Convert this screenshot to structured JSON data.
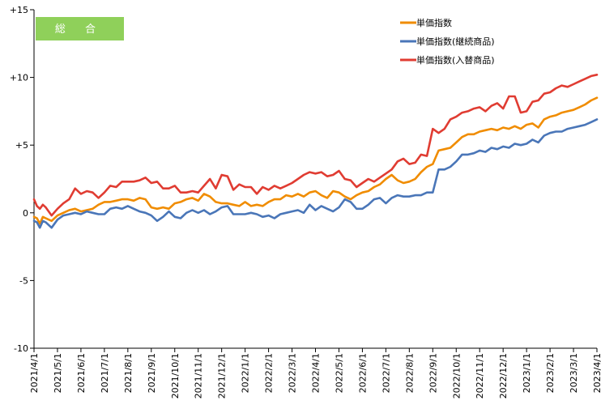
{
  "chart_data": {
    "type": "line",
    "badge": "総 合",
    "ylim": [
      -10,
      15
    ],
    "yticks": [
      {
        "value": 15,
        "label": "+15"
      },
      {
        "value": 10,
        "label": "+10"
      },
      {
        "value": 5,
        "label": "+5"
      },
      {
        "value": 0,
        "label": "0"
      },
      {
        "value": -5,
        "label": "-5"
      },
      {
        "value": -10,
        "label": "-10"
      }
    ],
    "xticks": [
      "2021/4/1",
      "2021/5/1",
      "2021/6/1",
      "2021/7/1",
      "2021/8/1",
      "2021/9/1",
      "2021/10/1",
      "2021/11/1",
      "2021/12/1",
      "2022/1/1",
      "2022/2/1",
      "2022/3/1",
      "2022/4/1",
      "2022/5/1",
      "2022/6/1",
      "2022/7/1",
      "2022/8/1",
      "2022/9/1",
      "2022/10/1",
      "2022/11/1",
      "2022/12/1",
      "2023/1/1",
      "2023/2/1",
      "2023/3/1",
      "2023/4/1"
    ],
    "legend_position": "top-right",
    "grid": false,
    "series": [
      {
        "name": "単価指数",
        "color": "#f08c00",
        "points": [
          [
            0,
            -0.3
          ],
          [
            0.5,
            -0.4
          ],
          [
            1,
            -0.8
          ],
          [
            1.5,
            -0.3
          ],
          [
            2,
            -0.4
          ],
          [
            3,
            -0.6
          ],
          [
            4,
            -0.2
          ],
          [
            5,
            0.0
          ],
          [
            6,
            0.2
          ],
          [
            7,
            0.3
          ],
          [
            8,
            0.1
          ],
          [
            9,
            0.2
          ],
          [
            10,
            0.3
          ],
          [
            11,
            0.6
          ],
          [
            12,
            0.8
          ],
          [
            13,
            0.8
          ],
          [
            14,
            0.9
          ],
          [
            15,
            1.0
          ],
          [
            16,
            1.0
          ],
          [
            17,
            0.9
          ],
          [
            18,
            1.1
          ],
          [
            19,
            1.0
          ],
          [
            20,
            0.4
          ],
          [
            21,
            0.3
          ],
          [
            22,
            0.4
          ],
          [
            23,
            0.3
          ],
          [
            24,
            0.7
          ],
          [
            25,
            0.8
          ],
          [
            26,
            1.0
          ],
          [
            27,
            1.1
          ],
          [
            28,
            0.9
          ],
          [
            29,
            1.4
          ],
          [
            30,
            1.2
          ],
          [
            31,
            0.8
          ],
          [
            32,
            0.7
          ],
          [
            33,
            0.7
          ],
          [
            34,
            0.6
          ],
          [
            35,
            0.5
          ],
          [
            36,
            0.8
          ],
          [
            37,
            0.5
          ],
          [
            38,
            0.6
          ],
          [
            39,
            0.5
          ],
          [
            40,
            0.8
          ],
          [
            41,
            1.0
          ],
          [
            42,
            1.0
          ],
          [
            43,
            1.3
          ],
          [
            44,
            1.2
          ],
          [
            45,
            1.4
          ],
          [
            46,
            1.2
          ],
          [
            47,
            1.5
          ],
          [
            48,
            1.6
          ],
          [
            49,
            1.3
          ],
          [
            50,
            1.1
          ],
          [
            51,
            1.6
          ],
          [
            52,
            1.5
          ],
          [
            53,
            1.2
          ],
          [
            54,
            1.0
          ],
          [
            55,
            1.3
          ],
          [
            56,
            1.5
          ],
          [
            57,
            1.6
          ],
          [
            58,
            1.9
          ],
          [
            59,
            2.1
          ],
          [
            60,
            2.5
          ],
          [
            61,
            2.8
          ],
          [
            62,
            2.4
          ],
          [
            63,
            2.2
          ],
          [
            64,
            2.3
          ],
          [
            65,
            2.5
          ],
          [
            66,
            3.0
          ],
          [
            67,
            3.4
          ],
          [
            68,
            3.6
          ],
          [
            69,
            4.6
          ],
          [
            70,
            4.7
          ],
          [
            71,
            4.8
          ],
          [
            72,
            5.2
          ],
          [
            73,
            5.6
          ],
          [
            74,
            5.8
          ],
          [
            75,
            5.8
          ],
          [
            76,
            6.0
          ],
          [
            77,
            6.1
          ],
          [
            78,
            6.2
          ],
          [
            79,
            6.1
          ],
          [
            80,
            6.3
          ],
          [
            81,
            6.2
          ],
          [
            82,
            6.4
          ],
          [
            83,
            6.2
          ],
          [
            84,
            6.5
          ],
          [
            85,
            6.6
          ],
          [
            86,
            6.3
          ],
          [
            87,
            6.9
          ],
          [
            88,
            7.1
          ],
          [
            89,
            7.2
          ],
          [
            90,
            7.4
          ],
          [
            91,
            7.5
          ],
          [
            92,
            7.6
          ],
          [
            93,
            7.8
          ],
          [
            94,
            8.0
          ],
          [
            95,
            8.3
          ],
          [
            96,
            8.5
          ]
        ]
      },
      {
        "name": "単価指数(継続商品)",
        "color": "#4a76b8",
        "points": [
          [
            0,
            -0.6
          ],
          [
            0.5,
            -0.7
          ],
          [
            1,
            -1.1
          ],
          [
            1.5,
            -0.6
          ],
          [
            2,
            -0.7
          ],
          [
            3,
            -1.1
          ],
          [
            4,
            -0.5
          ],
          [
            5,
            -0.2
          ],
          [
            6,
            -0.1
          ],
          [
            7,
            0.0
          ],
          [
            8,
            -0.1
          ],
          [
            9,
            0.1
          ],
          [
            10,
            0.0
          ],
          [
            11,
            -0.1
          ],
          [
            12,
            -0.1
          ],
          [
            13,
            0.3
          ],
          [
            14,
            0.4
          ],
          [
            15,
            0.3
          ],
          [
            16,
            0.5
          ],
          [
            17,
            0.3
          ],
          [
            18,
            0.1
          ],
          [
            19,
            0.0
          ],
          [
            20,
            -0.2
          ],
          [
            21,
            -0.6
          ],
          [
            22,
            -0.3
          ],
          [
            23,
            0.1
          ],
          [
            24,
            -0.3
          ],
          [
            25,
            -0.4
          ],
          [
            26,
            0.0
          ],
          [
            27,
            0.2
          ],
          [
            28,
            0.0
          ],
          [
            29,
            0.2
          ],
          [
            30,
            -0.1
          ],
          [
            31,
            0.1
          ],
          [
            32,
            0.4
          ],
          [
            33,
            0.5
          ],
          [
            34,
            -0.1
          ],
          [
            35,
            -0.1
          ],
          [
            36,
            -0.1
          ],
          [
            37,
            0.0
          ],
          [
            38,
            -0.1
          ],
          [
            39,
            -0.3
          ],
          [
            40,
            -0.2
          ],
          [
            41,
            -0.4
          ],
          [
            42,
            -0.1
          ],
          [
            43,
            0.0
          ],
          [
            44,
            0.1
          ],
          [
            45,
            0.2
          ],
          [
            46,
            0.0
          ],
          [
            47,
            0.6
          ],
          [
            48,
            0.2
          ],
          [
            49,
            0.5
          ],
          [
            50,
            0.3
          ],
          [
            51,
            0.1
          ],
          [
            52,
            0.4
          ],
          [
            53,
            1.0
          ],
          [
            54,
            0.8
          ],
          [
            55,
            0.3
          ],
          [
            56,
            0.3
          ],
          [
            57,
            0.6
          ],
          [
            58,
            1.0
          ],
          [
            59,
            1.1
          ],
          [
            60,
            0.7
          ],
          [
            61,
            1.1
          ],
          [
            62,
            1.3
          ],
          [
            63,
            1.2
          ],
          [
            64,
            1.2
          ],
          [
            65,
            1.3
          ],
          [
            66,
            1.3
          ],
          [
            67,
            1.5
          ],
          [
            68,
            1.5
          ],
          [
            69,
            3.2
          ],
          [
            70,
            3.2
          ],
          [
            71,
            3.4
          ],
          [
            72,
            3.8
          ],
          [
            73,
            4.3
          ],
          [
            74,
            4.3
          ],
          [
            75,
            4.4
          ],
          [
            76,
            4.6
          ],
          [
            77,
            4.5
          ],
          [
            78,
            4.8
          ],
          [
            79,
            4.7
          ],
          [
            80,
            4.9
          ],
          [
            81,
            4.8
          ],
          [
            82,
            5.1
          ],
          [
            83,
            5.0
          ],
          [
            84,
            5.1
          ],
          [
            85,
            5.4
          ],
          [
            86,
            5.2
          ],
          [
            87,
            5.7
          ],
          [
            88,
            5.9
          ],
          [
            89,
            6.0
          ],
          [
            90,
            6.0
          ],
          [
            91,
            6.2
          ],
          [
            92,
            6.3
          ],
          [
            93,
            6.4
          ],
          [
            94,
            6.5
          ],
          [
            95,
            6.7
          ],
          [
            96,
            6.9
          ]
        ]
      },
      {
        "name": "単価指数(入替商品)",
        "color": "#e03c32",
        "points": [
          [
            0,
            1.0
          ],
          [
            0.5,
            0.5
          ],
          [
            1,
            0.3
          ],
          [
            1.5,
            0.6
          ],
          [
            2,
            0.4
          ],
          [
            3,
            -0.2
          ],
          [
            4,
            0.3
          ],
          [
            5,
            0.7
          ],
          [
            6,
            1.0
          ],
          [
            7,
            1.8
          ],
          [
            8,
            1.4
          ],
          [
            9,
            1.6
          ],
          [
            10,
            1.5
          ],
          [
            11,
            1.1
          ],
          [
            12,
            1.5
          ],
          [
            13,
            2.0
          ],
          [
            14,
            1.9
          ],
          [
            15,
            2.3
          ],
          [
            16,
            2.3
          ],
          [
            17,
            2.3
          ],
          [
            18,
            2.4
          ],
          [
            19,
            2.6
          ],
          [
            20,
            2.2
          ],
          [
            21,
            2.3
          ],
          [
            22,
            1.8
          ],
          [
            23,
            1.8
          ],
          [
            24,
            2.0
          ],
          [
            25,
            1.5
          ],
          [
            26,
            1.5
          ],
          [
            27,
            1.6
          ],
          [
            28,
            1.5
          ],
          [
            29,
            2.0
          ],
          [
            30,
            2.5
          ],
          [
            31,
            1.8
          ],
          [
            32,
            2.8
          ],
          [
            33,
            2.7
          ],
          [
            34,
            1.7
          ],
          [
            35,
            2.1
          ],
          [
            36,
            1.9
          ],
          [
            37,
            1.9
          ],
          [
            38,
            1.4
          ],
          [
            39,
            1.9
          ],
          [
            40,
            1.7
          ],
          [
            41,
            2.0
          ],
          [
            42,
            1.8
          ],
          [
            43,
            2.0
          ],
          [
            44,
            2.2
          ],
          [
            45,
            2.5
          ],
          [
            46,
            2.8
          ],
          [
            47,
            3.0
          ],
          [
            48,
            2.9
          ],
          [
            49,
            3.0
          ],
          [
            50,
            2.7
          ],
          [
            51,
            2.8
          ],
          [
            52,
            3.1
          ],
          [
            53,
            2.5
          ],
          [
            54,
            2.4
          ],
          [
            55,
            1.9
          ],
          [
            56,
            2.2
          ],
          [
            57,
            2.5
          ],
          [
            58,
            2.3
          ],
          [
            59,
            2.6
          ],
          [
            60,
            2.9
          ],
          [
            61,
            3.2
          ],
          [
            62,
            3.8
          ],
          [
            63,
            4.0
          ],
          [
            64,
            3.6
          ],
          [
            65,
            3.7
          ],
          [
            66,
            4.3
          ],
          [
            67,
            4.2
          ],
          [
            68,
            6.2
          ],
          [
            69,
            5.9
          ],
          [
            70,
            6.2
          ],
          [
            71,
            6.9
          ],
          [
            72,
            7.1
          ],
          [
            73,
            7.4
          ],
          [
            74,
            7.5
          ],
          [
            75,
            7.7
          ],
          [
            76,
            7.8
          ],
          [
            77,
            7.5
          ],
          [
            78,
            7.9
          ],
          [
            79,
            8.1
          ],
          [
            80,
            7.7
          ],
          [
            81,
            8.6
          ],
          [
            82,
            8.6
          ],
          [
            83,
            7.4
          ],
          [
            84,
            7.5
          ],
          [
            85,
            8.2
          ],
          [
            86,
            8.3
          ],
          [
            87,
            8.8
          ],
          [
            88,
            8.9
          ],
          [
            89,
            9.2
          ],
          [
            90,
            9.4
          ],
          [
            91,
            9.3
          ],
          [
            92,
            9.5
          ],
          [
            93,
            9.7
          ],
          [
            94,
            9.9
          ],
          [
            95,
            10.1
          ],
          [
            96,
            10.2
          ]
        ]
      }
    ]
  }
}
